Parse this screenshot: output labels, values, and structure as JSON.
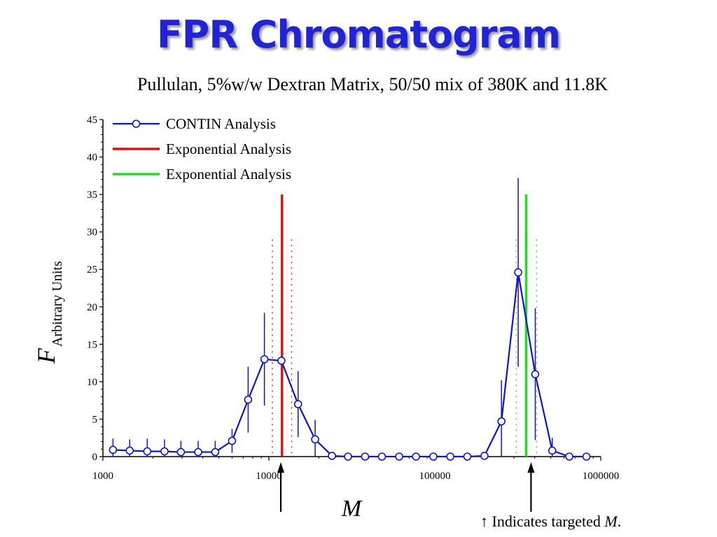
{
  "title": "FPR Chromatogram",
  "subtitle": "Pullulan, 5%w/w Dextran Matrix, 50/50 mix of 380K and 11.8K",
  "footnote": {
    "arrow": "↑",
    "text": "Indicates targeted",
    "symbol": "M",
    "period": "."
  },
  "colors": {
    "title": "#2323d6",
    "contin": "#1313c8",
    "exp_red": "#e01010",
    "exp_green": "#22dd22"
  },
  "chart_data": {
    "type": "scatter",
    "xscale": "log",
    "xlim": [
      1000,
      1000000
    ],
    "ylim": [
      0,
      45
    ],
    "xticks": [
      1000,
      10000,
      100000,
      1000000
    ],
    "xtick_labels": [
      "1000",
      "10000",
      "100000",
      "1000000"
    ],
    "yticks": [
      0,
      5,
      10,
      15,
      20,
      25,
      30,
      35,
      40,
      45
    ],
    "ytick_labels": [
      "0",
      "5",
      "10",
      "15",
      "20",
      "25",
      "30",
      "35",
      "40",
      "45"
    ],
    "xlabel": "M",
    "ylabel": {
      "main": "F",
      "sub": "Arbitrary Units"
    },
    "legend": {
      "position": "top-left",
      "entries": [
        {
          "label": "CONTIN Analysis",
          "style": "line-marker",
          "color": "#1313c8"
        },
        {
          "label": "Exponential Analysis",
          "style": "line",
          "color": "#e01010"
        },
        {
          "label": "Exponential Analysis",
          "style": "line",
          "color": "#22dd22"
        }
      ]
    },
    "series": [
      {
        "name": "CONTIN Analysis",
        "color": "#1313c8",
        "x": [
          1150,
          1450,
          1850,
          2350,
          2950,
          3750,
          4750,
          6000,
          7500,
          9400,
          11900,
          15000,
          19000,
          24000,
          30000,
          38000,
          48000,
          61000,
          77000,
          98000,
          124000,
          157000,
          199000,
          252000,
          318000,
          403000,
          510000,
          646000,
          820000
        ],
        "y": [
          0.9,
          0.8,
          0.7,
          0.7,
          0.6,
          0.6,
          0.6,
          2.1,
          7.6,
          13.0,
          12.8,
          7.0,
          2.3,
          0.1,
          0.0,
          0.0,
          0.0,
          0.0,
          0.0,
          0.0,
          0.0,
          0.0,
          0.1,
          4.7,
          24.6,
          11.0,
          0.8,
          0.0,
          0.0
        ],
        "err": [
          1.5,
          1.5,
          1.7,
          1.6,
          1.5,
          1.5,
          1.5,
          1.6,
          4.4,
          6.2,
          0.4,
          4.4,
          2.6,
          0.1,
          0.0,
          0.0,
          0.0,
          0.0,
          0.0,
          0.0,
          0.0,
          0.0,
          0.0,
          5.5,
          12.6,
          8.8,
          1.7,
          0.0,
          0.0
        ]
      }
    ],
    "exponential_lines": [
      {
        "color": "#e01010",
        "x": 12000,
        "height": 35,
        "bounds": [
          10500,
          13700
        ],
        "bounds_height": 29
      },
      {
        "color": "#22dd22",
        "x": 355000,
        "height": 35,
        "bounds": [
          310000,
          410000
        ],
        "bounds_height": 29
      }
    ],
    "targeted_markers": [
      11800,
      380000
    ]
  }
}
